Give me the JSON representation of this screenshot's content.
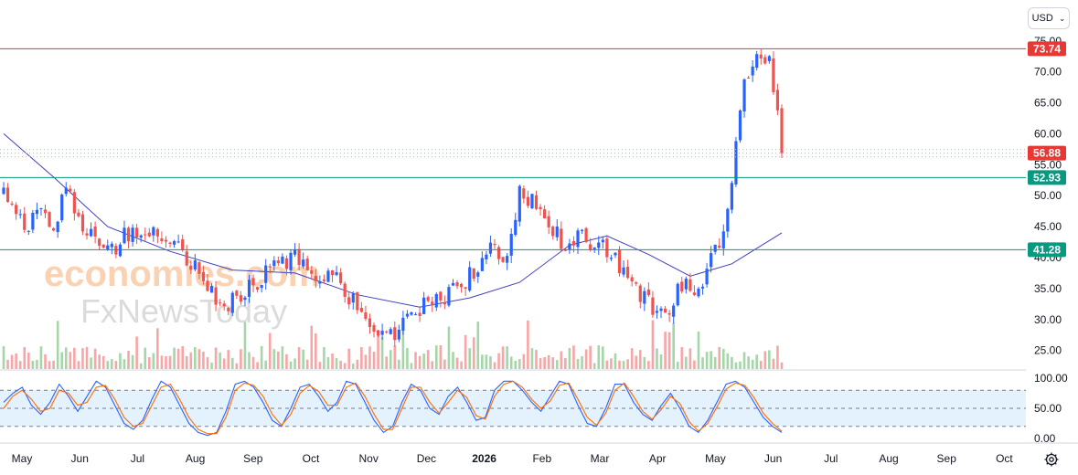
{
  "currency_selector": {
    "label": "USD",
    "icon": "chevron-down-icon"
  },
  "watermark": {
    "line1": "economies.com",
    "line2": "FxNewsToday"
  },
  "settings_icon": "gear-icon",
  "colors": {
    "up": "#2962ff",
    "down": "#ef5350",
    "vol_up": "#a5d6a7",
    "vol_down": "#f8a5a5",
    "ma": "#3f3fbf",
    "resistance": "#e53935",
    "support": "#089981",
    "stoch_k": "#2962ff",
    "stoch_d": "#ff6d00",
    "stoch_band": "#e3f2fd"
  },
  "chart_data": [
    {
      "type": "candlestick",
      "price_axis": {
        "ticks": [
          "75.00",
          "70.00",
          "65.00",
          "60.00",
          "55.00",
          "50.00",
          "45.00",
          "40.00",
          "35.00",
          "30.00",
          "25.00"
        ],
        "ylim": [
          22,
          76
        ]
      },
      "time_axis": [
        "May",
        "Jun",
        "Jul",
        "Aug",
        "Sep",
        "Oct",
        "Nov",
        "Dec",
        "2026",
        "Feb",
        "Mar",
        "Apr",
        "May",
        "Jun",
        "Jul",
        "Aug",
        "Sep",
        "Oct"
      ],
      "horizontal_lines": [
        {
          "label": "73.74",
          "value": 73.74,
          "role": "resistance"
        },
        {
          "label": "52.93",
          "value": 52.93,
          "role": "support"
        },
        {
          "label": "41.28",
          "value": 41.28,
          "role": "support"
        }
      ],
      "last_price": {
        "label": "56.88",
        "value": 56.88
      },
      "price_path": [
        [
          0,
          52
        ],
        [
          3,
          47
        ],
        [
          6,
          45
        ],
        [
          9,
          49
        ],
        [
          12,
          44
        ],
        [
          15,
          52
        ],
        [
          18,
          46
        ],
        [
          22,
          43
        ],
        [
          26,
          41
        ],
        [
          30,
          44
        ],
        [
          34,
          45
        ],
        [
          38,
          43
        ],
        [
          41,
          42
        ],
        [
          44,
          40
        ],
        [
          47,
          38
        ],
        [
          50,
          34
        ],
        [
          53,
          32
        ],
        [
          57,
          34
        ],
        [
          61,
          36
        ],
        [
          64,
          38
        ],
        [
          67,
          39
        ],
        [
          70,
          40
        ],
        [
          73,
          38
        ],
        [
          76,
          37
        ],
        [
          79,
          38
        ],
        [
          82,
          35
        ],
        [
          85,
          32
        ],
        [
          88,
          29
        ],
        [
          91,
          27
        ],
        [
          94,
          27
        ],
        [
          97,
          30
        ],
        [
          100,
          32
        ],
        [
          103,
          33
        ],
        [
          106,
          34
        ],
        [
          109,
          35
        ],
        [
          112,
          37
        ],
        [
          115,
          39
        ],
        [
          118,
          42
        ],
        [
          121,
          39
        ],
        [
          124,
          51
        ],
        [
          127,
          49
        ],
        [
          130,
          47
        ],
        [
          133,
          44
        ],
        [
          136,
          41
        ],
        [
          139,
          44
        ],
        [
          142,
          42
        ],
        [
          145,
          41
        ],
        [
          148,
          39
        ],
        [
          151,
          36
        ],
        [
          154,
          33
        ],
        [
          157,
          31
        ],
        [
          160,
          32
        ],
        [
          163,
          36
        ],
        [
          166,
          34
        ],
        [
          169,
          38
        ],
        [
          172,
          42
        ],
        [
          175,
          52
        ],
        [
          178,
          68
        ],
        [
          181,
          73
        ],
        [
          184,
          72
        ],
        [
          187,
          58
        ]
      ],
      "moving_average": [
        [
          0,
          60
        ],
        [
          12,
          53
        ],
        [
          25,
          45
        ],
        [
          40,
          41
        ],
        [
          55,
          38
        ],
        [
          70,
          37.5
        ],
        [
          85,
          34
        ],
        [
          100,
          32
        ],
        [
          112,
          33.5
        ],
        [
          124,
          36
        ],
        [
          136,
          42
        ],
        [
          145,
          43.5
        ],
        [
          155,
          40.5
        ],
        [
          165,
          37
        ],
        [
          175,
          39
        ],
        [
          187,
          44
        ]
      ],
      "volume_bars": 188
    },
    {
      "type": "line",
      "name": "stochastic",
      "axis_ticks": [
        "100.00",
        "50.00",
        "0.00"
      ],
      "ylim": [
        0,
        100
      ],
      "levels": [
        80,
        50,
        20
      ],
      "series": [
        {
          "values": [
            60,
            75,
            85,
            55,
            40,
            60,
            90,
            70,
            45,
            70,
            95,
            85,
            55,
            25,
            15,
            30,
            65,
            95,
            85,
            55,
            25,
            10,
            5,
            10,
            45,
            90,
            95,
            85,
            60,
            30,
            20,
            50,
            85,
            90,
            70,
            45,
            60,
            95,
            90,
            60,
            30,
            10,
            20,
            60,
            90,
            80,
            50,
            40,
            70,
            85,
            60,
            30,
            35,
            80,
            95,
            95,
            80,
            60,
            45,
            70,
            95,
            90,
            55,
            25,
            20,
            50,
            90,
            90,
            60,
            40,
            30,
            55,
            75,
            50,
            20,
            10,
            30,
            60,
            90,
            95,
            85,
            60,
            35,
            20,
            10
          ]
        },
        {
          "values": [
            50,
            70,
            80,
            65,
            45,
            50,
            80,
            75,
            55,
            60,
            85,
            88,
            65,
            35,
            20,
            25,
            55,
            85,
            90,
            65,
            35,
            15,
            8,
            8,
            35,
            80,
            92,
            88,
            70,
            40,
            22,
            40,
            75,
            88,
            78,
            55,
            55,
            85,
            92,
            70,
            40,
            15,
            15,
            50,
            85,
            85,
            60,
            42,
            60,
            80,
            68,
            38,
            32,
            70,
            90,
            95,
            85,
            65,
            50,
            62,
            88,
            92,
            65,
            35,
            22,
            42,
            80,
            92,
            70,
            45,
            32,
            48,
            70,
            58,
            28,
            12,
            25,
            52,
            82,
            92,
            88,
            68,
            42,
            25,
            12
          ]
        }
      ]
    }
  ]
}
